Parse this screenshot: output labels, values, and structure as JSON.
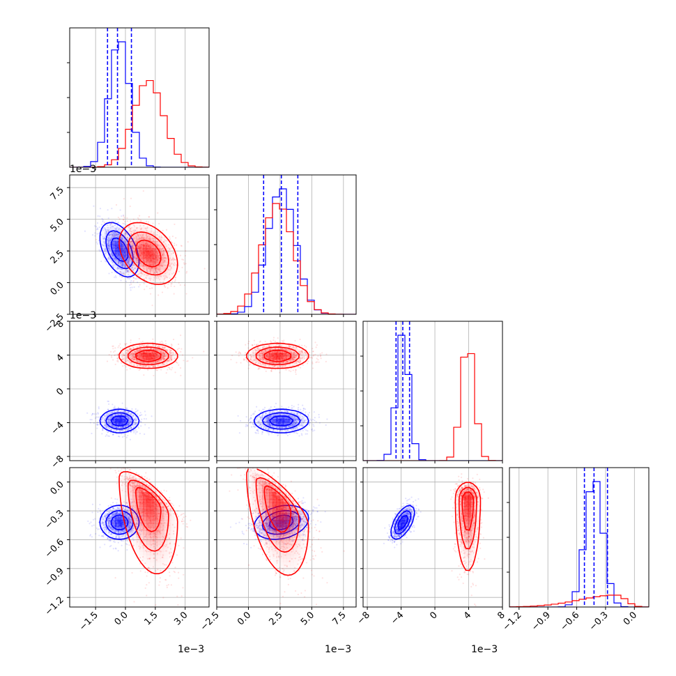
{
  "colors": {
    "series_a": "#0000ff",
    "series_b": "#ff0000",
    "grid": "#b0b0b0",
    "frame": "#000000"
  },
  "chart_data": {
    "type": "corner",
    "grid": true,
    "parameters": [
      {
        "range": [
          -2.8,
          4.2
        ],
        "ticks": [
          -1.5,
          0.0,
          1.5,
          3.0
        ],
        "tick_labels": [
          "−1.5",
          "0.0",
          "1.5",
          "3.0"
        ],
        "scale_label": "1e−3",
        "quantiles": [
          -0.9,
          -0.4,
          0.3
        ]
      },
      {
        "range": [
          -2.5,
          8.5
        ],
        "ticks": [
          -2.5,
          0.0,
          2.5,
          5.0,
          7.5
        ],
        "tick_labels": [
          "−2.5",
          "0.0",
          "2.5",
          "5.0",
          "7.5"
        ],
        "scale_label": "1e−3",
        "quantiles": [
          1.2,
          2.6,
          3.9
        ]
      },
      {
        "range": [
          -8.5,
          8.0
        ],
        "ticks": [
          -8,
          -4,
          0,
          4,
          8
        ],
        "tick_labels": [
          "−8",
          "−4",
          "0",
          "4",
          "8"
        ],
        "scale_label": "1e−3",
        "quantiles": [
          -4.6,
          -3.8,
          -3.0
        ]
      },
      {
        "range": [
          -1.3,
          0.15
        ],
        "ticks": [
          -1.2,
          -0.9,
          -0.6,
          -0.3,
          0.0
        ],
        "tick_labels": [
          "−1.2",
          "−0.9",
          "−0.6",
          "−0.3",
          "0.0"
        ],
        "scale_label": "",
        "quantiles": [
          -0.52,
          -0.42,
          -0.28
        ]
      }
    ],
    "series": [
      {
        "color": "#0000ff",
        "dist": [
          {
            "kind": "gauss",
            "mean": -0.3,
            "sd": 0.5
          },
          {
            "kind": "gauss",
            "mean": 2.6,
            "sd": 1.1
          },
          {
            "kind": "gauss",
            "mean": -3.8,
            "sd": 0.7
          },
          {
            "kind": "gauss",
            "mean": -0.42,
            "sd": 0.09
          }
        ]
      },
      {
        "color": "#ff0000",
        "dist": [
          {
            "kind": "gauss",
            "mean": 1.15,
            "sd": 0.75
          },
          {
            "kind": "gauss",
            "mean": 2.3,
            "sd": 1.25
          },
          {
            "kind": "gauss",
            "mean": 3.9,
            "sd": 0.75
          },
          {
            "kind": "skew",
            "peak": -0.18,
            "sd_right": 0.09,
            "sd_left": 0.38
          }
        ]
      }
    ],
    "correlations": [
      {
        "pair": [
          0,
          1
        ],
        "rho": [
          -0.45,
          -0.35
        ]
      },
      {
        "pair": [
          0,
          2
        ],
        "rho": [
          0.0,
          0.0
        ]
      },
      {
        "pair": [
          1,
          2
        ],
        "rho": [
          0.0,
          0.0
        ]
      },
      {
        "pair": [
          0,
          3
        ],
        "rho": [
          0.0,
          -0.5
        ]
      },
      {
        "pair": [
          1,
          3
        ],
        "rho": [
          0.25,
          -0.6
        ]
      },
      {
        "pair": [
          2,
          3
        ],
        "rho": [
          0.6,
          0.0
        ]
      }
    ]
  }
}
